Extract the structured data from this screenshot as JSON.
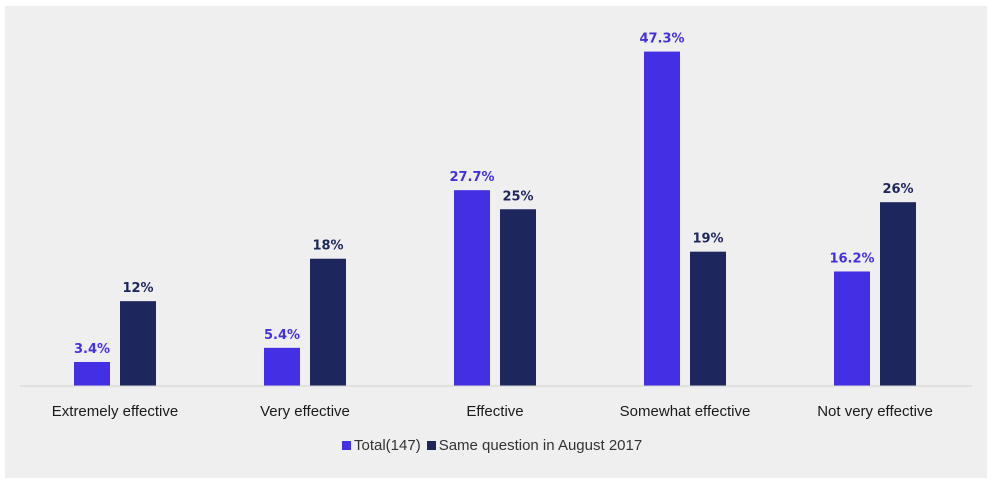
{
  "chart_data": {
    "type": "bar",
    "categories": [
      "Extremely effective",
      "Very effective",
      "Effective",
      "Somewhat effective",
      "Not very effective"
    ],
    "series": [
      {
        "name": "Total(147)",
        "values": [
          3.4,
          5.4,
          27.7,
          47.3,
          16.2
        ],
        "labels": [
          "3.4%",
          "5.4%",
          "27.7%",
          "47.3%",
          "16.2%"
        ]
      },
      {
        "name": "Same question in August 2017",
        "values": [
          12,
          18,
          25,
          19,
          26
        ],
        "labels": [
          "12%",
          "18%",
          "25%",
          "19%",
          "26%"
        ]
      }
    ],
    "ylim": [
      0,
      50
    ],
    "grid": false,
    "legend_position": "bottom",
    "colors": [
      "#4430e4",
      "#1e275d"
    ],
    "value_label_colors": [
      "#4430e4",
      "#1e275d"
    ]
  }
}
